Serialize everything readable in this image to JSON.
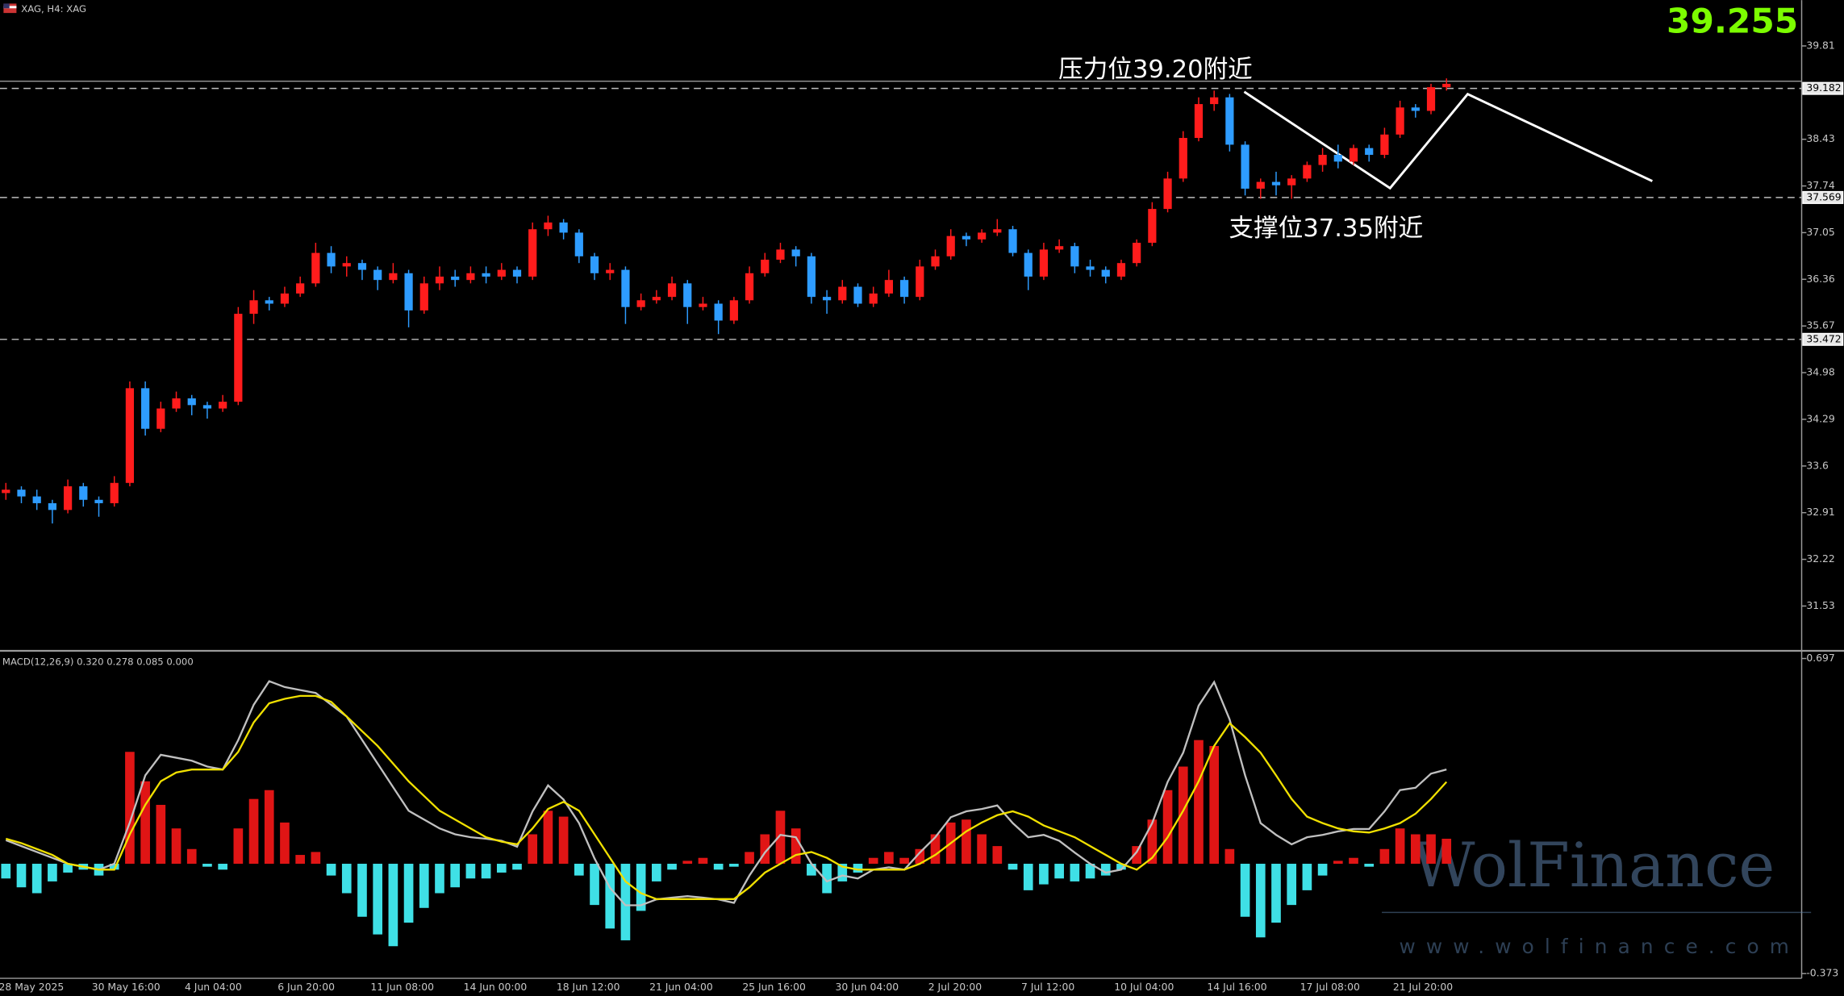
{
  "chart_data": [
    {
      "type": "candlestick",
      "title": "XAG, H4: XAG",
      "last_price": 39.255,
      "annotations": [
        "压力位39.20附近",
        "支撑位37.35附近"
      ],
      "up_color": "#ff1c1c",
      "down_color": "#2e9cff",
      "levels": [
        39.182,
        37.569,
        35.472
      ],
      "ylim": [
        30.876,
        40.488
      ],
      "yticks": [
        39.81,
        38.43,
        37.74,
        37.05,
        36.36,
        35.67,
        34.98,
        34.29,
        33.6,
        32.91,
        32.22,
        31.53
      ],
      "categories": [
        "28 May 2025",
        null,
        null,
        null,
        null,
        null,
        "30 May 16:00",
        null,
        null,
        null,
        null,
        null,
        "4 Jun 04:00",
        null,
        null,
        null,
        null,
        null,
        "6 Jun 20:00",
        null,
        null,
        null,
        null,
        null,
        "11 Jun 08:00",
        null,
        null,
        null,
        null,
        null,
        "14 Jun 00:00",
        null,
        null,
        null,
        null,
        null,
        "18 Jun 12:00",
        null,
        null,
        null,
        null,
        null,
        "21 Jun 04:00",
        null,
        null,
        null,
        null,
        null,
        "25 Jun 16:00",
        null,
        null,
        null,
        null,
        null,
        "30 Jun 04:00",
        null,
        null,
        null,
        null,
        null,
        "2 Jul 20:00",
        null,
        null,
        null,
        null,
        null,
        "7 Jul 12:00",
        null,
        null,
        null,
        null,
        null,
        "10 Jul 04:00",
        null,
        null,
        null,
        null,
        null,
        "14 Jul 16:00",
        null,
        null,
        null,
        null,
        null,
        "17 Jul 08:00",
        null,
        null,
        null,
        null,
        null,
        "21 Jul 20:00",
        null,
        null,
        null
      ],
      "open": [
        33.2,
        33.25,
        33.15,
        33.05,
        32.95,
        33.3,
        33.1,
        33.05,
        33.35,
        34.75,
        34.15,
        34.45,
        34.6,
        34.5,
        34.45,
        34.55,
        35.85,
        36.05,
        36.0,
        36.15,
        36.3,
        36.75,
        36.55,
        36.6,
        36.5,
        36.35,
        36.45,
        35.9,
        36.3,
        36.4,
        36.35,
        36.45,
        36.4,
        36.5,
        36.4,
        37.1,
        37.2,
        37.05,
        36.7,
        36.45,
        36.5,
        35.95,
        36.05,
        36.1,
        36.3,
        35.95,
        36.0,
        35.75,
        36.05,
        36.45,
        36.65,
        36.8,
        36.7,
        36.1,
        36.05,
        36.25,
        36.0,
        36.15,
        36.35,
        36.1,
        36.55,
        36.7,
        37.0,
        36.95,
        37.05,
        37.1,
        36.75,
        36.4,
        36.8,
        36.85,
        36.55,
        36.5,
        36.4,
        36.6,
        36.9,
        37.4,
        37.85,
        38.45,
        38.95,
        39.05,
        38.35,
        37.7,
        37.8,
        37.75,
        37.85,
        38.05,
        38.2,
        38.1,
        38.3,
        38.2,
        38.5,
        38.9,
        38.85,
        39.2
      ],
      "high": [
        33.35,
        33.3,
        33.25,
        33.1,
        33.4,
        33.35,
        33.15,
        33.45,
        34.85,
        34.85,
        34.55,
        34.7,
        34.65,
        34.55,
        34.65,
        35.95,
        36.2,
        36.1,
        36.25,
        36.4,
        36.9,
        36.85,
        36.7,
        36.65,
        36.55,
        36.6,
        36.5,
        36.4,
        36.55,
        36.5,
        36.55,
        36.55,
        36.6,
        36.55,
        37.2,
        37.3,
        37.25,
        37.1,
        36.75,
        36.6,
        36.55,
        36.15,
        36.2,
        36.4,
        36.35,
        36.1,
        36.05,
        36.1,
        36.55,
        36.75,
        36.9,
        36.85,
        36.75,
        36.2,
        36.35,
        36.3,
        36.25,
        36.5,
        36.4,
        36.65,
        36.8,
        37.1,
        37.05,
        37.1,
        37.25,
        37.15,
        36.8,
        36.9,
        36.95,
        36.9,
        36.65,
        36.55,
        36.65,
        36.95,
        37.5,
        37.95,
        38.55,
        39.05,
        39.15,
        39.1,
        38.4,
        37.85,
        37.95,
        37.9,
        38.1,
        38.3,
        38.35,
        38.35,
        38.35,
        38.6,
        39.0,
        38.95,
        39.25,
        39.33
      ],
      "low": [
        33.1,
        33.05,
        32.95,
        32.75,
        32.9,
        33.0,
        32.85,
        33.0,
        33.3,
        34.05,
        34.1,
        34.4,
        34.35,
        34.3,
        34.4,
        34.5,
        35.7,
        35.9,
        35.95,
        36.1,
        36.25,
        36.45,
        36.4,
        36.35,
        36.2,
        36.3,
        35.65,
        35.85,
        36.2,
        36.25,
        36.3,
        36.3,
        36.35,
        36.3,
        36.35,
        37.0,
        36.95,
        36.6,
        36.35,
        36.35,
        35.7,
        35.9,
        36.0,
        36.05,
        35.7,
        35.9,
        35.55,
        35.7,
        36.0,
        36.4,
        36.6,
        36.55,
        36.0,
        35.85,
        36.0,
        35.95,
        35.95,
        36.1,
        36.0,
        36.05,
        36.5,
        36.65,
        36.85,
        36.9,
        37.0,
        36.7,
        36.2,
        36.35,
        36.75,
        36.45,
        36.4,
        36.3,
        36.35,
        36.55,
        36.85,
        37.35,
        37.8,
        38.4,
        38.85,
        38.25,
        37.6,
        37.55,
        37.6,
        37.55,
        37.8,
        37.95,
        38.0,
        38.05,
        38.1,
        38.15,
        38.45,
        38.75,
        38.8,
        39.15
      ],
      "close": [
        33.25,
        33.15,
        33.05,
        32.95,
        33.3,
        33.1,
        33.05,
        33.35,
        34.75,
        34.15,
        34.45,
        34.6,
        34.5,
        34.45,
        34.55,
        35.85,
        36.05,
        36.0,
        36.15,
        36.3,
        36.75,
        36.55,
        36.6,
        36.5,
        36.35,
        36.45,
        35.9,
        36.3,
        36.4,
        36.35,
        36.45,
        36.4,
        36.5,
        36.4,
        37.1,
        37.2,
        37.05,
        36.7,
        36.45,
        36.5,
        35.95,
        36.05,
        36.1,
        36.3,
        35.95,
        36.0,
        35.75,
        36.05,
        36.45,
        36.65,
        36.8,
        36.7,
        36.1,
        36.05,
        36.25,
        36.0,
        36.15,
        36.35,
        36.1,
        36.55,
        36.7,
        37.0,
        36.95,
        37.05,
        37.1,
        36.75,
        36.4,
        36.8,
        36.85,
        36.55,
        36.5,
        36.4,
        36.6,
        36.9,
        37.4,
        37.85,
        38.45,
        38.95,
        39.05,
        38.35,
        37.7,
        37.8,
        37.75,
        37.85,
        38.05,
        38.2,
        38.1,
        38.3,
        38.2,
        38.5,
        38.9,
        38.85,
        39.2,
        39.25
      ]
    },
    {
      "type": "macd",
      "title": "MACD(12,26,9) 0.320 0.278 0.085 0.000",
      "ylim": [
        -0.389,
        0.717
      ],
      "yticks": [
        0.697,
        -0.373
      ],
      "histogram": {
        "up_color": "#e01515",
        "down_color": "#3fe0e6",
        "values": [
          -0.05,
          -0.08,
          -0.1,
          -0.06,
          -0.03,
          -0.02,
          -0.04,
          -0.02,
          0.38,
          0.28,
          0.2,
          0.12,
          0.05,
          -0.01,
          -0.02,
          0.12,
          0.22,
          0.25,
          0.14,
          0.03,
          0.04,
          -0.04,
          -0.1,
          -0.18,
          -0.24,
          -0.28,
          -0.2,
          -0.15,
          -0.1,
          -0.08,
          -0.05,
          -0.05,
          -0.03,
          -0.02,
          0.1,
          0.18,
          0.16,
          -0.04,
          -0.14,
          -0.22,
          -0.26,
          -0.16,
          -0.06,
          -0.02,
          0.01,
          0.02,
          -0.02,
          -0.01,
          0.04,
          0.1,
          0.18,
          0.12,
          -0.04,
          -0.1,
          -0.06,
          -0.03,
          0.02,
          0.04,
          0.02,
          0.05,
          0.1,
          0.14,
          0.15,
          0.1,
          0.06,
          -0.02,
          -0.09,
          -0.07,
          -0.05,
          -0.06,
          -0.05,
          -0.04,
          -0.02,
          0.06,
          0.15,
          0.25,
          0.33,
          0.42,
          0.4,
          0.05,
          -0.18,
          -0.25,
          -0.2,
          -0.14,
          -0.09,
          -0.04,
          0.01,
          0.02,
          -0.01,
          0.05,
          0.12,
          0.1,
          0.1,
          0.085
        ]
      },
      "series": [
        {
          "color": "#c0c0c0",
          "values": [
            0.08,
            0.06,
            0.04,
            0.02,
            0.0,
            -0.01,
            -0.02,
            0.0,
            0.14,
            0.3,
            0.37,
            0.36,
            0.35,
            0.33,
            0.32,
            0.42,
            0.54,
            0.62,
            0.6,
            0.59,
            0.58,
            0.54,
            0.5,
            0.42,
            0.34,
            0.26,
            0.18,
            0.15,
            0.12,
            0.1,
            0.09,
            0.085,
            0.078,
            0.058,
            0.178,
            0.266,
            0.218,
            0.138,
            0.018,
            -0.082,
            -0.141,
            -0.141,
            -0.121,
            -0.115,
            -0.11,
            -0.115,
            -0.121,
            -0.133,
            -0.04,
            0.038,
            0.098,
            0.09,
            0.0,
            -0.06,
            -0.04,
            -0.05,
            -0.02,
            -0.012,
            -0.02,
            0.038,
            0.09,
            0.158,
            0.178,
            0.186,
            0.198,
            0.138,
            0.09,
            0.098,
            0.078,
            0.038,
            0.0,
            -0.03,
            -0.02,
            0.04,
            0.138,
            0.278,
            0.377,
            0.537,
            0.617,
            0.49,
            0.3,
            0.138,
            0.098,
            0.066,
            0.09,
            0.098,
            0.11,
            0.118,
            0.118,
            0.178,
            0.25,
            0.258,
            0.306,
            0.32
          ]
        },
        {
          "color": "#f0e000",
          "values": [
            0.085,
            0.07,
            0.05,
            0.03,
            0.0,
            -0.01,
            -0.02,
            -0.02,
            0.1,
            0.2,
            0.28,
            0.31,
            0.32,
            0.32,
            0.32,
            0.38,
            0.48,
            0.545,
            0.56,
            0.57,
            0.57,
            0.55,
            0.5,
            0.45,
            0.4,
            0.34,
            0.28,
            0.23,
            0.18,
            0.15,
            0.12,
            0.09,
            0.075,
            0.066,
            0.12,
            0.186,
            0.21,
            0.18,
            0.1,
            0.02,
            -0.06,
            -0.1,
            -0.12,
            -0.12,
            -0.12,
            -0.12,
            -0.12,
            -0.12,
            -0.08,
            -0.03,
            0.0,
            0.03,
            0.04,
            0.02,
            -0.01,
            -0.02,
            -0.02,
            -0.02,
            -0.02,
            0.0,
            0.03,
            0.07,
            0.11,
            0.14,
            0.165,
            0.178,
            0.16,
            0.13,
            0.11,
            0.09,
            0.06,
            0.03,
            0.0,
            -0.02,
            0.02,
            0.09,
            0.18,
            0.28,
            0.4,
            0.477,
            0.43,
            0.377,
            0.3,
            0.22,
            0.16,
            0.138,
            0.12,
            0.11,
            0.106,
            0.12,
            0.138,
            0.17,
            0.22,
            0.278
          ]
        }
      ]
    }
  ],
  "watermark": {
    "brand": "WolFinance",
    "url": "www.wolfinance.com"
  }
}
